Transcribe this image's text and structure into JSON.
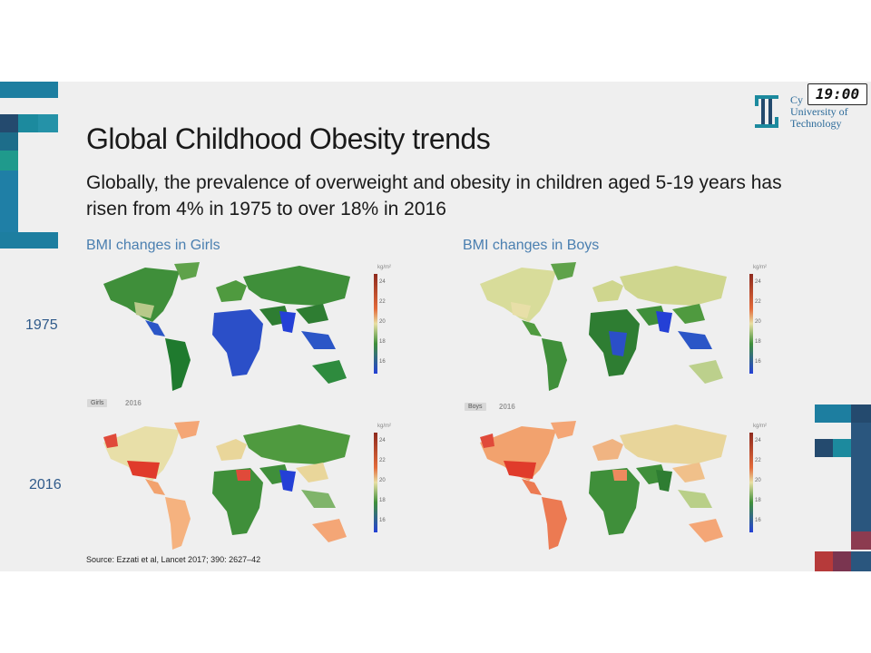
{
  "header": {
    "title": "Global Childhood Obesity trends",
    "subtitle": "Globally, the prevalence of overweight and obesity in children aged 5-19 years has risen from 4% in 1975 to over 18% in 2016"
  },
  "logo": {
    "line1": "Cy",
    "line2": "University of",
    "line3": "Technology",
    "color": "#2c6b9a"
  },
  "overlay": {
    "clock": "19:00"
  },
  "panels": {
    "girls_label": "BMI changes in Girls",
    "boys_label": "BMI changes in Boys"
  },
  "years": {
    "first": "1975",
    "second": "2016"
  },
  "legend": {
    "unit": "kg/m²",
    "ticks": [
      "24",
      "22",
      "20",
      "18",
      "16"
    ]
  },
  "map_tags": {
    "girls": "Girls",
    "boys": "Boys",
    "year": "2016"
  },
  "source": "Source: Ezzati et al, Lancet 2017; 390: 2627–42",
  "colors": {
    "accent_teal": "#1c8a9e",
    "accent_navy": "#244a6e",
    "accent_red": "#b63a3a",
    "label_blue": "#4a7fb0"
  }
}
